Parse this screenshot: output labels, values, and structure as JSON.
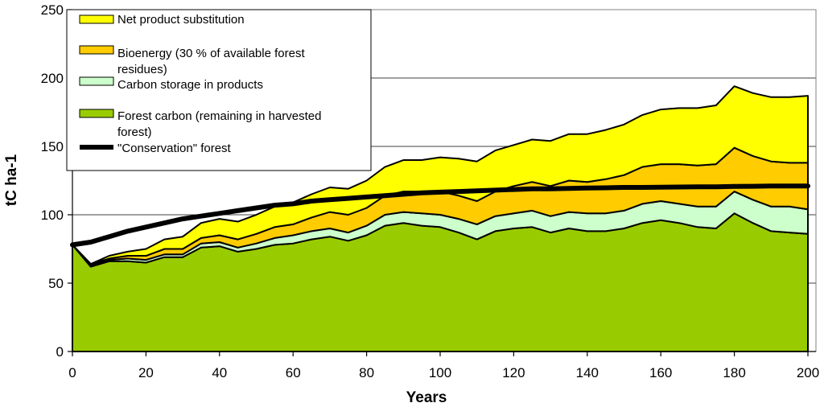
{
  "chart_data": {
    "type": "area",
    "title": "",
    "xlabel": "Years",
    "ylabel": "tC ha-1",
    "xlim": [
      0,
      200
    ],
    "ylim": [
      0,
      250
    ],
    "x_ticks": [
      "0",
      "20",
      "40",
      "60",
      "80",
      "100",
      "120",
      "140",
      "160",
      "180",
      "200"
    ],
    "y_ticks": [
      "0",
      "50",
      "100",
      "150",
      "200",
      "250"
    ],
    "gridlines": "horizontal",
    "x": [
      0,
      5,
      10,
      15,
      20,
      25,
      30,
      35,
      40,
      45,
      50,
      55,
      60,
      65,
      70,
      75,
      80,
      85,
      90,
      95,
      100,
      105,
      110,
      115,
      120,
      125,
      130,
      135,
      140,
      145,
      150,
      155,
      160,
      165,
      170,
      175,
      180,
      185,
      190,
      195,
      200
    ],
    "series": [
      {
        "name": "Forest carbon (remaining in harvested forest)",
        "kind": "stacked-area",
        "color": "#99cc00",
        "values": [
          78,
          62,
          66,
          66,
          65,
          69,
          69,
          76,
          77,
          73,
          75,
          78,
          79,
          82,
          84,
          81,
          85,
          92,
          94,
          92,
          91,
          87,
          82,
          88,
          90,
          91,
          87,
          90,
          88,
          88,
          90,
          94,
          96,
          94,
          91,
          90,
          101,
          94,
          88,
          87,
          86
        ]
      },
      {
        "name": "Carbon storage in products",
        "kind": "stacked-area",
        "color": "#ccffcc",
        "values": [
          0,
          1,
          1,
          2,
          2,
          2,
          2,
          3,
          3,
          3,
          4,
          5,
          6,
          6,
          6,
          6,
          7,
          8,
          8,
          9,
          9,
          10,
          11,
          11,
          11,
          12,
          12,
          12,
          13,
          13,
          13,
          14,
          14,
          14,
          15,
          16,
          16,
          17,
          18,
          19,
          18
        ]
      },
      {
        "name": "Bioenergy (30 % of available forest residues)",
        "kind": "stacked-area",
        "color": "#ffcc00",
        "values": [
          0,
          1,
          1,
          2,
          3,
          4,
          4,
          4,
          5,
          6,
          7,
          8,
          8,
          10,
          12,
          13,
          13,
          14,
          15,
          16,
          17,
          17,
          17,
          18,
          20,
          21,
          22,
          23,
          23,
          25,
          26,
          27,
          27,
          29,
          30,
          31,
          32,
          32,
          33,
          32,
          34
        ]
      },
      {
        "name": "Net product substitution",
        "kind": "stacked-area",
        "color": "#ffff00",
        "values": [
          0,
          0,
          2,
          3,
          5,
          7,
          9,
          11,
          12,
          13,
          14,
          15,
          16,
          17,
          18,
          19,
          20,
          21,
          23,
          23,
          25,
          27,
          29,
          30,
          30,
          31,
          33,
          34,
          35,
          36,
          37,
          38,
          40,
          41,
          42,
          43,
          45,
          46,
          47,
          48,
          49
        ]
      },
      {
        "name": "\"Conservation\" forest",
        "kind": "line",
        "color": "#000000",
        "values": [
          78,
          80,
          84,
          88,
          91,
          94,
          97,
          99,
          101,
          103,
          105,
          107,
          108,
          110,
          111,
          112,
          113,
          114,
          115,
          116,
          116.5,
          117,
          117.5,
          118,
          118.5,
          119,
          119,
          119.3,
          119.5,
          119.7,
          120,
          120,
          120.2,
          120.3,
          120.5,
          120.5,
          120.7,
          120.8,
          121,
          121,
          121
        ]
      }
    ],
    "legend": {
      "position": "top-left",
      "entries": [
        {
          "label": "Net product substitution",
          "color": "#ffff00",
          "kind": "swatch"
        },
        {
          "label": "Bioenergy (30 % of available forest residues)",
          "line1": "Bioenergy (30 % of available forest",
          "line2": "residues)",
          "color": "#ffcc00",
          "kind": "swatch"
        },
        {
          "label": "Carbon storage in products",
          "color": "#ccffcc",
          "kind": "swatch"
        },
        {
          "label": "Forest carbon (remaining in harvested forest)",
          "line1": "Forest carbon (remaining in harvested",
          "line2": "forest)",
          "color": "#99cc00",
          "kind": "swatch"
        },
        {
          "label": "\"Conservation\" forest",
          "color": "#000000",
          "kind": "line"
        }
      ]
    }
  }
}
